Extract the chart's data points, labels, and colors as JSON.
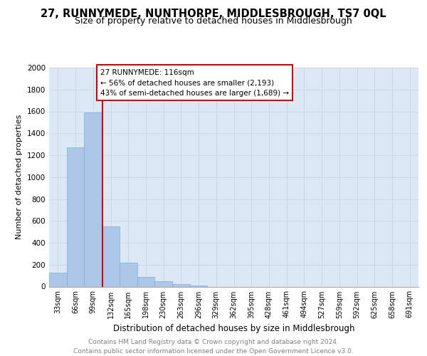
{
  "title": "27, RUNNYMEDE, NUNTHORPE, MIDDLESBROUGH, TS7 0QL",
  "subtitle": "Size of property relative to detached houses in Middlesbrough",
  "xlabel": "Distribution of detached houses by size in Middlesbrough",
  "ylabel": "Number of detached properties",
  "bins": [
    "33sqm",
    "66sqm",
    "99sqm",
    "132sqm",
    "165sqm",
    "198sqm",
    "230sqm",
    "263sqm",
    "296sqm",
    "329sqm",
    "362sqm",
    "395sqm",
    "428sqm",
    "461sqm",
    "494sqm",
    "527sqm",
    "559sqm",
    "592sqm",
    "625sqm",
    "658sqm",
    "691sqm"
  ],
  "values": [
    130,
    1270,
    1590,
    550,
    215,
    85,
    48,
    20,
    10,
    0,
    0,
    0,
    0,
    0,
    0,
    0,
    0,
    0,
    0,
    0,
    0
  ],
  "bar_color": "#aec6e8",
  "bar_edge_color": "#7aafd4",
  "vline_color": "#cc0000",
  "annotation_text": "27 RUNNYMEDE: 116sqm\n← 56% of detached houses are smaller (2,193)\n43% of semi-detached houses are larger (1,689) →",
  "annotation_box_color": "#cc0000",
  "ylim": [
    0,
    2000
  ],
  "yticks": [
    0,
    200,
    400,
    600,
    800,
    1000,
    1200,
    1400,
    1600,
    1800,
    2000
  ],
  "grid_color": "#c8d8e8",
  "background_color": "#dce8f5",
  "footer_text": "Contains HM Land Registry data © Crown copyright and database right 2024.\nContains public sector information licensed under the Open Government Licence v3.0.",
  "title_fontsize": 10.5,
  "subtitle_fontsize": 9,
  "xlabel_fontsize": 8.5,
  "ylabel_fontsize": 8,
  "footer_fontsize": 6.5
}
